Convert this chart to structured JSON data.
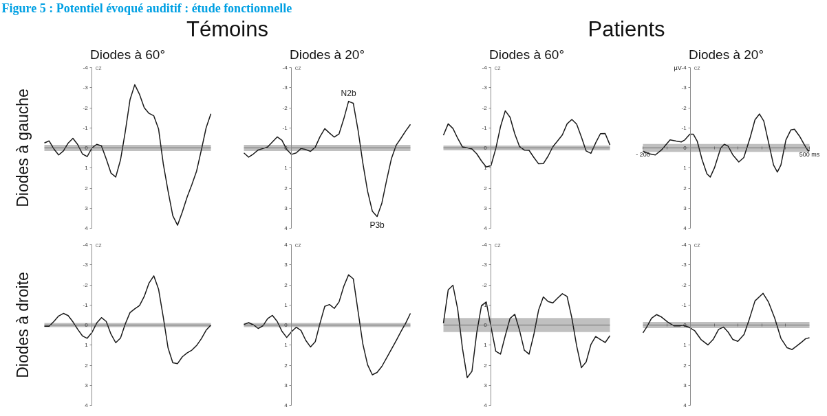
{
  "chart_data": [
    {
      "type": "other",
      "title": "Figure 5 : Potentiel évoqué auditif : étude fonctionnelle",
      "annotations": [
        "Témoins",
        "Patients"
      ]
    },
    {
      "type": "line",
      "title": "Diodes à 60°",
      "ylabel": "Diodes à gauche",
      "annotations": [
        "cz"
      ],
      "color": "#1a1a1a",
      "categories": [
        null,
        null,
        null,
        null,
        null,
        null,
        null,
        null,
        null,
        null,
        null,
        null,
        null,
        null,
        null,
        null,
        null,
        null,
        null,
        null,
        null,
        null,
        null,
        null,
        null,
        null,
        null,
        null,
        null,
        null,
        null,
        null,
        null,
        null,
        null,
        null
      ],
      "values": [
        -0.25,
        -0.35,
        0.05,
        0.35,
        0.15,
        -0.24,
        -0.48,
        -0.17,
        0.3,
        0.43,
        0.0,
        -0.18,
        -0.1,
        0.55,
        1.25,
        1.45,
        0.6,
        -0.8,
        -2.4,
        -3.15,
        -2.67,
        -2.0,
        -1.72,
        -1.6,
        -0.95,
        0.8,
        2.15,
        3.38,
        3.85,
        3.19,
        2.45,
        1.83,
        1.15,
        0.1,
        -1.0,
        -1.7
      ],
      "ylim": [
        4,
        -4
      ],
      "yticks": [
        -4,
        -3,
        -2,
        -1,
        0,
        1,
        2,
        3,
        4
      ],
      "bands": [
        {
          "axis": "y",
          "from": -0.15,
          "to": 0.15,
          "color": "#c0c0c0"
        }
      ],
      "tick_labels": "y"
    },
    {
      "type": "line",
      "title": "Diodes à 20°",
      "annotations": [
        "cz",
        {
          "text": "N2b",
          "y": -2.32
        },
        {
          "text": "P3b",
          "y": 3.42
        }
      ],
      "color": "#1a1a1a",
      "categories": [
        null,
        null,
        null,
        null,
        null,
        null,
        null,
        null,
        null,
        null,
        null,
        null,
        null,
        null,
        null,
        null,
        null,
        null,
        null,
        null,
        null,
        null,
        null,
        null,
        null,
        null,
        null,
        null,
        null,
        null,
        null,
        null,
        null,
        null,
        null,
        null
      ],
      "values": [
        0.25,
        0.46,
        0.3,
        0.1,
        0.03,
        -0.05,
        -0.3,
        -0.55,
        -0.38,
        0.08,
        0.32,
        0.25,
        0.03,
        0.08,
        0.17,
        -0.04,
        -0.56,
        -0.96,
        -0.74,
        -0.54,
        -0.7,
        -1.45,
        -2.32,
        -2.22,
        -0.88,
        0.75,
        2.16,
        3.15,
        3.42,
        2.75,
        1.61,
        0.54,
        -0.13,
        -0.48,
        -0.84,
        -1.17
      ],
      "ylim": [
        4,
        -4
      ],
      "yticks": [
        -4,
        -3,
        -2,
        -1,
        0,
        1,
        2,
        3,
        4
      ],
      "bands": [
        {
          "axis": "y",
          "from": -0.15,
          "to": 0.15,
          "color": "#c0c0c0"
        }
      ],
      "tick_labels": "y"
    },
    {
      "type": "line",
      "title": "Diodes à 60°",
      "annotations": [
        "cz"
      ],
      "color": "#1a1a1a",
      "categories": [
        null,
        null,
        null,
        null,
        null,
        null,
        null,
        null,
        null,
        null,
        null,
        null,
        null,
        null,
        null,
        null,
        null,
        null,
        null,
        null,
        null,
        null,
        null,
        null,
        null,
        null,
        null,
        null,
        null,
        null,
        null,
        null,
        null,
        null,
        null,
        null
      ],
      "values": [
        -0.63,
        -1.2,
        -0.97,
        -0.48,
        -0.05,
        -0.01,
        0.05,
        0.29,
        0.65,
        0.95,
        0.88,
        0.04,
        -1.06,
        -1.85,
        -1.53,
        -0.7,
        -0.07,
        0.11,
        0.12,
        0.47,
        0.79,
        0.78,
        0.41,
        -0.06,
        -0.35,
        -0.65,
        -1.2,
        -1.42,
        -1.19,
        -0.55,
        0.15,
        0.27,
        -0.25,
        -0.71,
        -0.72,
        -0.15
      ],
      "ylim": [
        4,
        -4
      ],
      "yticks": [
        -4,
        -3,
        -2,
        -1,
        0,
        1,
        2,
        3,
        4
      ],
      "bands": [
        {
          "axis": "y",
          "from": -0.12,
          "to": 0.12,
          "color": "#c0c0c0"
        }
      ],
      "tick_labels": "y"
    },
    {
      "type": "line",
      "title": "Diodes à 20°",
      "annotations": [
        "µV",
        "cz"
      ],
      "color": "#1a1a1a",
      "x": [
        -200,
        -174,
        -148,
        -122,
        -86,
        -60,
        -39,
        -24,
        -3,
        12,
        28,
        49,
        69,
        83,
        101,
        127,
        142,
        158,
        178,
        203,
        224,
        251,
        271,
        290,
        308,
        328,
        349,
        365,
        380,
        401,
        422,
        437,
        458,
        479,
        495,
        500
      ],
      "values": [
        0.16,
        0.29,
        0.35,
        0.1,
        -0.4,
        -0.34,
        -0.3,
        -0.4,
        -0.68,
        -0.68,
        -0.34,
        0.6,
        1.29,
        1.45,
        0.98,
        0.0,
        -0.18,
        -0.09,
        0.35,
        0.7,
        0.48,
        -0.53,
        -1.4,
        -1.69,
        -1.34,
        -0.28,
        0.85,
        1.2,
        0.85,
        -0.4,
        -0.9,
        -0.93,
        -0.59,
        -0.15,
        0.16,
        0.1
      ],
      "xlim": [
        -200,
        500
      ],
      "xticks": [
        {
          "value": -200,
          "label": "- 200"
        },
        {
          "value": -100,
          "label": null
        },
        {
          "value": 100,
          "label": null
        },
        {
          "value": 200,
          "label": null
        },
        {
          "value": 300,
          "label": null
        },
        {
          "value": 400,
          "label": null
        },
        {
          "value": 500,
          "label": "500 ms"
        }
      ],
      "ylim": [
        4,
        -4
      ],
      "yticks": [
        -4,
        -3,
        -2,
        -1,
        0,
        1,
        2,
        3,
        4
      ],
      "bands": [
        {
          "axis": "y",
          "from": -0.2,
          "to": 0.2,
          "color": "#c0c0c0"
        }
      ]
    },
    {
      "type": "line",
      "ylabel": "Diodes à droite",
      "annotations": [
        "cz"
      ],
      "color": "#1a1a1a",
      "categories": [
        null,
        null,
        null,
        null,
        null,
        null,
        null,
        null,
        null,
        null,
        null,
        null,
        null,
        null,
        null,
        null,
        null,
        null,
        null,
        null,
        null,
        null,
        null,
        null,
        null,
        null,
        null,
        null,
        null,
        null,
        null,
        null,
        null,
        null,
        null,
        null
      ],
      "values": [
        0.06,
        0.06,
        -0.18,
        -0.45,
        -0.58,
        -0.47,
        -0.16,
        0.21,
        0.54,
        0.66,
        0.37,
        -0.1,
        -0.37,
        -0.18,
        0.45,
        0.88,
        0.65,
        -0.05,
        -0.62,
        -0.81,
        -0.97,
        -1.43,
        -2.09,
        -2.45,
        -1.79,
        -0.38,
        1.14,
        1.88,
        1.92,
        1.58,
        1.39,
        1.25,
        1.02,
        0.68,
        0.26,
        0.0
      ],
      "ylim": [
        4,
        -4
      ],
      "yticks": [
        -4,
        -3,
        -2,
        -1,
        0,
        1,
        2,
        3,
        4
      ],
      "bands": [
        {
          "axis": "y",
          "from": -0.1,
          "to": 0.1,
          "color": "#c0c0c0"
        }
      ],
      "tick_labels": "y"
    },
    {
      "type": "line",
      "annotations": [
        "cz"
      ],
      "color": "#1a1a1a",
      "categories": [
        null,
        null,
        null,
        null,
        null,
        null,
        null,
        null,
        null,
        null,
        null,
        null,
        null,
        null,
        null,
        null,
        null,
        null,
        null,
        null,
        null,
        null,
        null,
        null,
        null,
        null,
        null,
        null,
        null,
        null,
        null,
        null,
        null,
        null,
        null,
        null
      ],
      "values": [
        -0.03,
        -0.12,
        -0.01,
        0.17,
        0.04,
        -0.32,
        -0.48,
        -0.18,
        0.31,
        0.62,
        0.33,
        0.11,
        0.27,
        0.76,
        1.09,
        0.83,
        -0.09,
        -0.93,
        -1.02,
        -0.83,
        -1.15,
        -1.93,
        -2.5,
        -2.3,
        -0.68,
        0.94,
        1.98,
        2.48,
        2.36,
        2.06,
        1.64,
        1.21,
        0.78,
        0.33,
        -0.09,
        -0.58
      ],
      "ylim": [
        4,
        -4
      ],
      "yticks": [
        {
          "value": -4,
          "label": "4"
        },
        {
          "value": -3,
          "label": "3"
        },
        {
          "value": -2,
          "label": "2"
        },
        {
          "value": -1,
          "label": "1"
        },
        0,
        1,
        2,
        3,
        4
      ],
      "bands": [
        {
          "axis": "y",
          "from": -0.1,
          "to": 0.1,
          "color": "#c0c0c0"
        }
      ],
      "tick_labels": "y"
    },
    {
      "type": "line",
      "annotations": [
        "cz"
      ],
      "color": "#1a1a1a",
      "categories": [
        null,
        null,
        null,
        null,
        null,
        null,
        null,
        null,
        null,
        null,
        null,
        null,
        null,
        null,
        null,
        null,
        null,
        null,
        null,
        null,
        null,
        null,
        null,
        null,
        null,
        null,
        null,
        null,
        null,
        null,
        null,
        null,
        null,
        null,
        null,
        null
      ],
      "values": [
        -0.09,
        -1.75,
        -1.98,
        -0.79,
        1.16,
        2.62,
        2.3,
        0.39,
        -0.97,
        -1.15,
        0.09,
        1.3,
        1.45,
        0.53,
        -0.33,
        -0.54,
        0.26,
        1.25,
        1.45,
        0.48,
        -0.74,
        -1.4,
        -1.17,
        -1.1,
        -1.34,
        -1.56,
        -1.42,
        -0.35,
        1.03,
        2.12,
        1.84,
        0.97,
        0.57,
        0.72,
        0.87,
        0.53
      ],
      "ylim": [
        4,
        -4
      ],
      "yticks": [
        -4,
        -3,
        -2,
        -1,
        0,
        1,
        2,
        3,
        4
      ],
      "bands": [
        {
          "axis": "y",
          "from": -0.35,
          "to": 0.35,
          "color": "#c0c0c0"
        }
      ],
      "tick_labels": "y"
    },
    {
      "type": "line",
      "annotations": [
        "cz"
      ],
      "color": "#1a1a1a",
      "x": [
        -200,
        -184,
        -164,
        -143,
        -122,
        -96,
        -70,
        -45,
        -34,
        -8,
        18,
        44,
        73,
        95,
        118,
        139,
        158,
        178,
        199,
        225,
        245,
        271,
        305,
        328,
        354,
        380,
        406,
        427,
        448,
        468,
        484,
        500
      ],
      "values": [
        0.39,
        0.1,
        -0.34,
        -0.52,
        -0.4,
        -0.15,
        0.04,
        0.04,
        0.01,
        0.1,
        0.29,
        0.72,
        0.99,
        0.72,
        0.22,
        0.1,
        0.35,
        0.72,
        0.81,
        0.47,
        -0.21,
        -1.2,
        -1.58,
        -1.14,
        -0.34,
        0.66,
        1.13,
        1.22,
        1.03,
        0.84,
        0.68,
        0.63
      ],
      "xlim": [
        -200,
        500
      ],
      "xticks": [
        {
          "value": -100,
          "label": null
        },
        {
          "value": 100,
          "label": null
        },
        {
          "value": 200,
          "label": null
        },
        {
          "value": 300,
          "label": null
        },
        {
          "value": 400,
          "label": null
        }
      ],
      "ylim": [
        4,
        -4
      ],
      "yticks": [
        -4,
        -3,
        -2,
        -1,
        0,
        1,
        2,
        3,
        4
      ],
      "bands": [
        {
          "axis": "y",
          "from": -0.15,
          "to": 0.15,
          "color": "#c0c0c0"
        }
      ],
      "tick_labels": "y"
    }
  ]
}
